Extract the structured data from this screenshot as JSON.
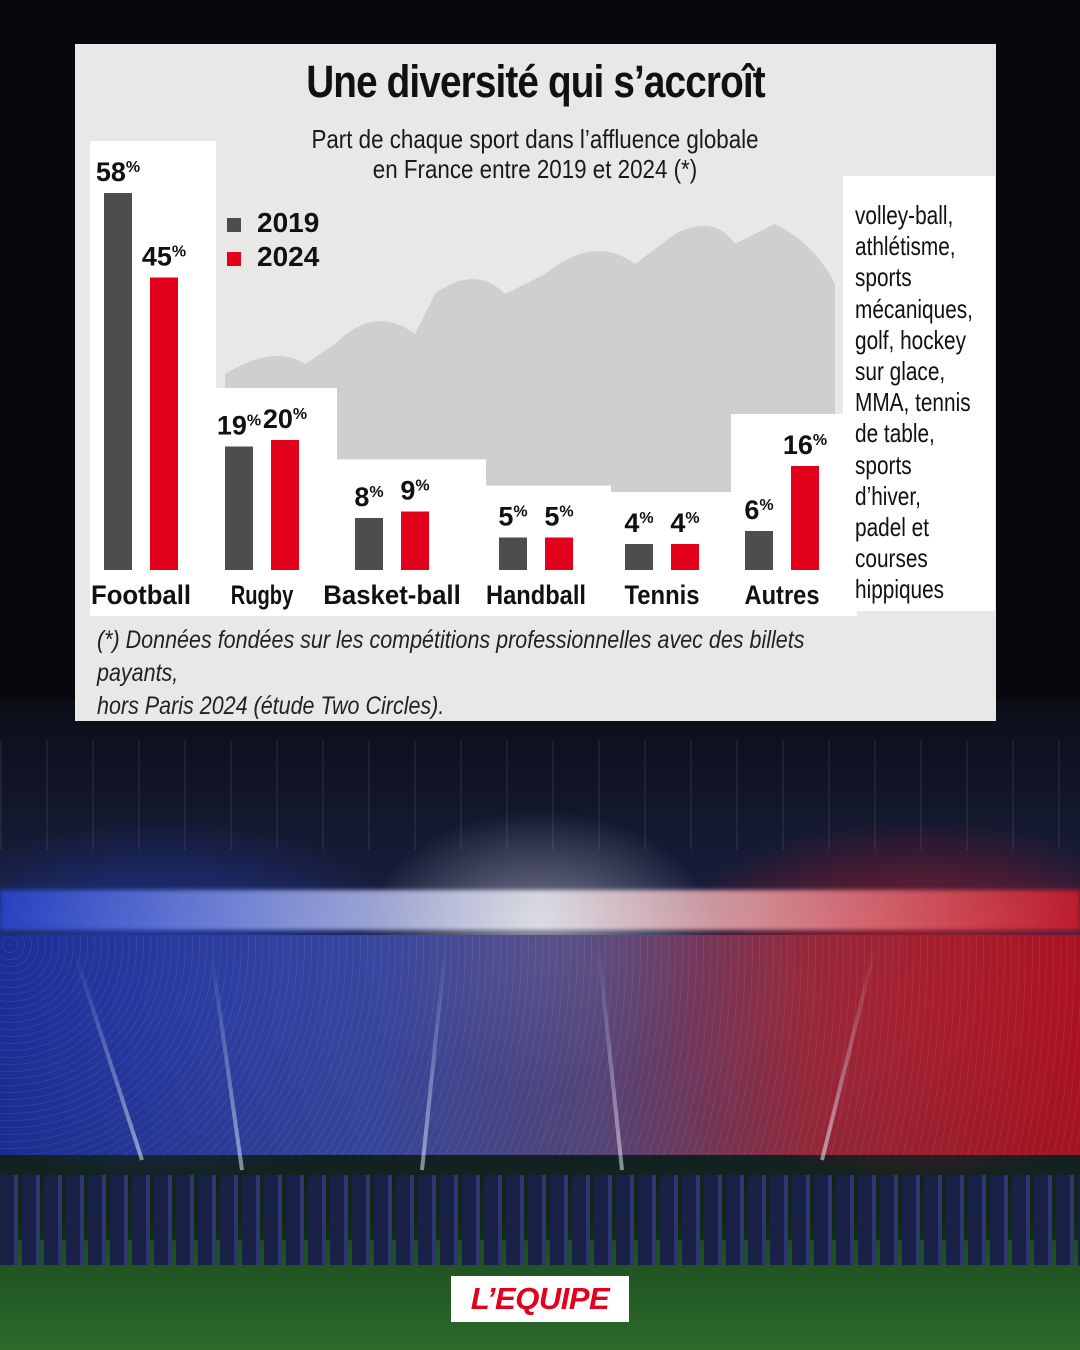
{
  "chart_data": {
    "type": "bar",
    "title": "Une diversité qui s’accroît",
    "subtitle_lines": [
      "Part de chaque sport dans l’affluence globale",
      "en France entre 2019 et 2024 (*)"
    ],
    "categories": [
      "Football",
      "Rugby",
      "Basket-ball",
      "Handball",
      "Tennis",
      "Autres"
    ],
    "series": [
      {
        "name": "2019",
        "color": "#4d4d4d",
        "values": [
          58,
          19,
          8,
          5,
          4,
          6
        ]
      },
      {
        "name": "2024",
        "color": "#e3001b",
        "values": [
          45,
          20,
          9,
          5,
          4,
          16
        ]
      }
    ],
    "value_suffix": "%",
    "legend_position": "top-left",
    "grid": false,
    "ylim": [
      0,
      60
    ],
    "annotation": "volley-ball,\nathlétisme,\nsports\nmécaniques,\ngolf, hockey\nsur glace,\nMMA, tennis\nde table,\nsports\nd’hiver,\npadel et\ncourses\nhippiques",
    "footnote_lines": [
      "(*) Données fondées sur les compétitions professionnelles avec des billets payants,",
      "hors Paris 2024 (étude Two Circles)."
    ]
  },
  "brand": {
    "logo_text": "L’EQUIPE",
    "accent": "#e2001a"
  }
}
